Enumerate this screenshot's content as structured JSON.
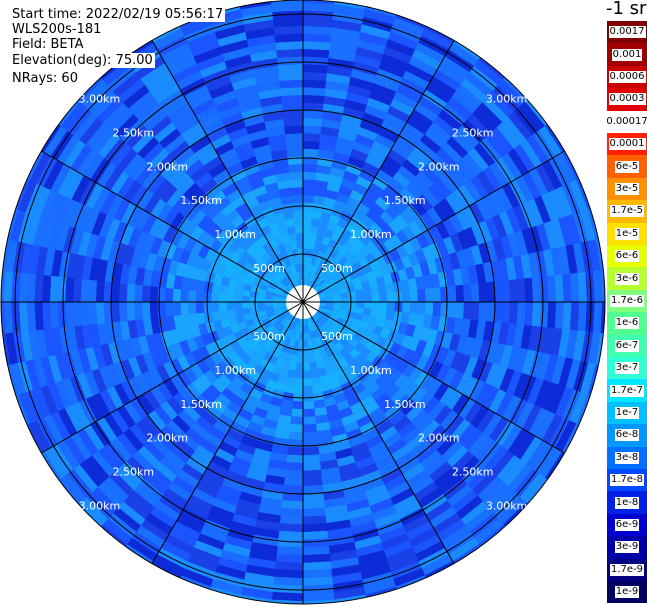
{
  "header": {
    "start_time": "Start time: 2022/02/19 05:56:17",
    "instrument": "WLS200s-181",
    "field": "Field: BETA",
    "elevation": "Elevation(deg): 75.00",
    "nrays": "NRays: 60"
  },
  "chart_data": {
    "type": "heatmap",
    "projection": "polar",
    "field": "BETA",
    "unit_label": "-1 sr",
    "elevation_deg": 75.0,
    "n_rays": 60,
    "range_rings_km": [
      0.5,
      1.0,
      1.5,
      2.0,
      2.5,
      3.0
    ],
    "range_ring_labels": [
      "500m",
      "1.00km",
      "1.50km",
      "2.00km",
      "2.50km",
      "3.00km"
    ],
    "spoke_angles_deg": [
      0,
      30,
      60,
      90,
      120,
      150,
      180,
      210,
      240,
      270,
      300,
      330
    ],
    "approx_values_by_ring": [
      {
        "range": "0–500m",
        "value": "6e-8"
      },
      {
        "range": "500m–1.00km",
        "value": "6e-8"
      },
      {
        "range": "1.00–1.50km",
        "value": "1.7e-8"
      },
      {
        "range": "1.50–3.00km",
        "value": "1e-8"
      }
    ],
    "colorbar": {
      "levels": [
        "0.0017",
        "0.001",
        "0.0006",
        "0.0003",
        "0.00017",
        "0.0001",
        "6e-5",
        "3e-5",
        "1.7e-5",
        "1e-5",
        "6e-6",
        "3e-6",
        "1.7e-6",
        "1e-6",
        "6e-7",
        "3e-7",
        "1.7e-7",
        "1e-7",
        "6e-8",
        "3e-8",
        "1.7e-8",
        "1e-8",
        "6e-9",
        "3e-9",
        "1.7e-9",
        "1e-9"
      ],
      "colors": [
        "#800000",
        "#a00000",
        "#c80000",
        "#e00000",
        "#ffffff",
        "#ff2000",
        "#ff6000",
        "#ff9000",
        "#ffb800",
        "#ffe000",
        "#e8ff00",
        "#b8ff30",
        "#80ff80",
        "#50ff90",
        "#40ffb0",
        "#30ffd8",
        "#00e8ff",
        "#00c0ff",
        "#0098ff",
        "#0070ff",
        "#0048ff",
        "#0020e8",
        "#0000d0",
        "#0000a8",
        "#000080",
        "#000060"
      ]
    }
  }
}
